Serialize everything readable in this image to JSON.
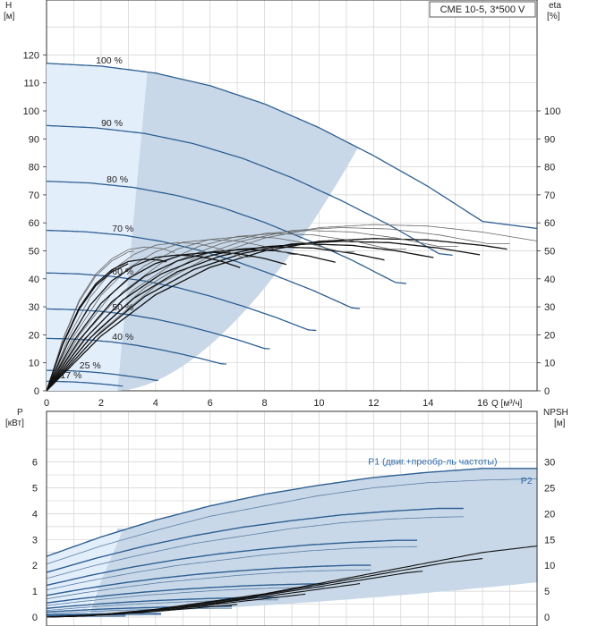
{
  "chart_data": [
    {
      "type": "line",
      "title_box": "CME 10-5, 3*500 V",
      "xlabel": "Q [м³/ч]",
      "ylabel_left": "H",
      "ylabel_left_unit": "[м]",
      "ylabel_right": "eta",
      "ylabel_right_unit": "[%]",
      "xlim": [
        0,
        18
      ],
      "ylim": [
        0,
        125
      ],
      "x_ticks": [
        0,
        2,
        4,
        6,
        8,
        10,
        12,
        14,
        16
      ],
      "y_ticks_left": [
        0,
        10,
        20,
        30,
        40,
        50,
        60,
        70,
        80,
        90,
        100,
        110,
        120
      ],
      "y_ticks_right": [
        0,
        10,
        20,
        30,
        40,
        50,
        60,
        70,
        80,
        90,
        100
      ],
      "grid": true,
      "speed_curves": [
        {
          "name": "100 %",
          "speed": 1.0
        },
        {
          "name": "90 %",
          "speed": 0.9
        },
        {
          "name": "80 %",
          "speed": 0.8
        },
        {
          "name": "70 %",
          "speed": 0.7
        },
        {
          "name": "60 %",
          "speed": 0.6
        },
        {
          "name": "50 %",
          "speed": 0.5
        },
        {
          "name": "40 %",
          "speed": 0.4
        },
        {
          "name": "25 %",
          "speed": 0.25
        },
        {
          "name": "17 %",
          "speed": 0.17
        }
      ],
      "head_curve_100": {
        "x": [
          0,
          2,
          4,
          6,
          8,
          10,
          12,
          14,
          16,
          18
        ],
        "y": [
          117,
          116,
          113.5,
          109,
          102.5,
          94,
          84,
          73,
          60.5,
          58
        ]
      },
      "efficiency_curve_100": {
        "x": [
          0,
          2,
          4,
          6,
          8,
          10,
          12,
          14,
          16,
          18
        ],
        "y": [
          0,
          20,
          35,
          45,
          51,
          54.5,
          55.5,
          55,
          53,
          50
        ]
      }
    },
    {
      "type": "line",
      "xlabel": "",
      "ylabel_left": "P",
      "ylabel_left_unit": "[кВт]",
      "ylabel_right": "NPSH",
      "ylabel_right_unit": "[м]",
      "xlim": [
        0,
        18
      ],
      "ylim": [
        0,
        7
      ],
      "y_ticks_left": [
        0,
        1,
        2,
        3,
        4,
        5,
        6
      ],
      "y_ticks_right": [
        0,
        5,
        10,
        15,
        20,
        25,
        30
      ],
      "grid": true,
      "series": [
        {
          "name": "P1 (двиг.+преобр-ль частоты)",
          "x": [
            0,
            2,
            4,
            6,
            8,
            10,
            12,
            14,
            16,
            18
          ],
          "values": [
            2.35,
            3.1,
            3.75,
            4.3,
            4.75,
            5.1,
            5.4,
            5.6,
            5.75,
            5.75
          ]
        },
        {
          "name": "P2",
          "x": [
            0,
            2,
            4,
            6,
            8,
            10,
            12,
            14,
            16,
            18
          ],
          "values": [
            2.05,
            2.75,
            3.35,
            3.9,
            4.3,
            4.7,
            5.0,
            5.2,
            5.3,
            5.35
          ]
        },
        {
          "name": "",
          "x": [
            0,
            2,
            4,
            6,
            8,
            10,
            12,
            14,
            16,
            18
          ],
          "values": [
            0,
            0.1,
            0.3,
            0.6,
            0.9,
            1.3,
            1.7,
            2.1,
            2.5,
            2.75
          ]
        }
      ]
    }
  ]
}
